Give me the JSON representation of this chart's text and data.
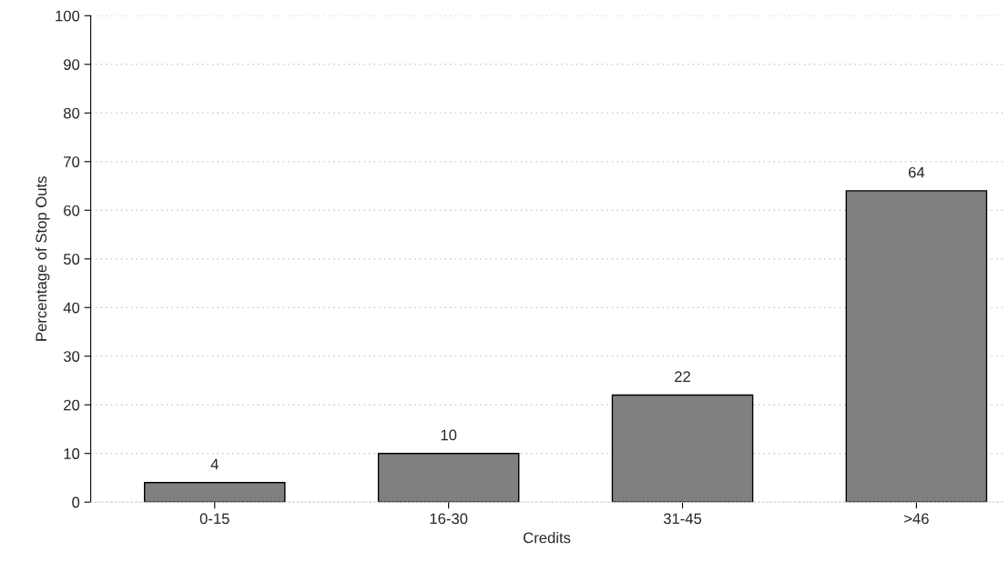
{
  "chart_data": {
    "type": "bar",
    "xlabel": "Credits",
    "ylabel": "Percentage of Stop Outs",
    "categories": [
      "0-15",
      "16-30",
      "31-45",
      ">46"
    ],
    "values": [
      4,
      10,
      22,
      64
    ],
    "color": "#808080",
    "ylim": [
      0,
      100
    ],
    "yticks": [
      0,
      10,
      20,
      30,
      40,
      50,
      60,
      70,
      80,
      90,
      100
    ],
    "grid": "y",
    "data_labels": true
  }
}
